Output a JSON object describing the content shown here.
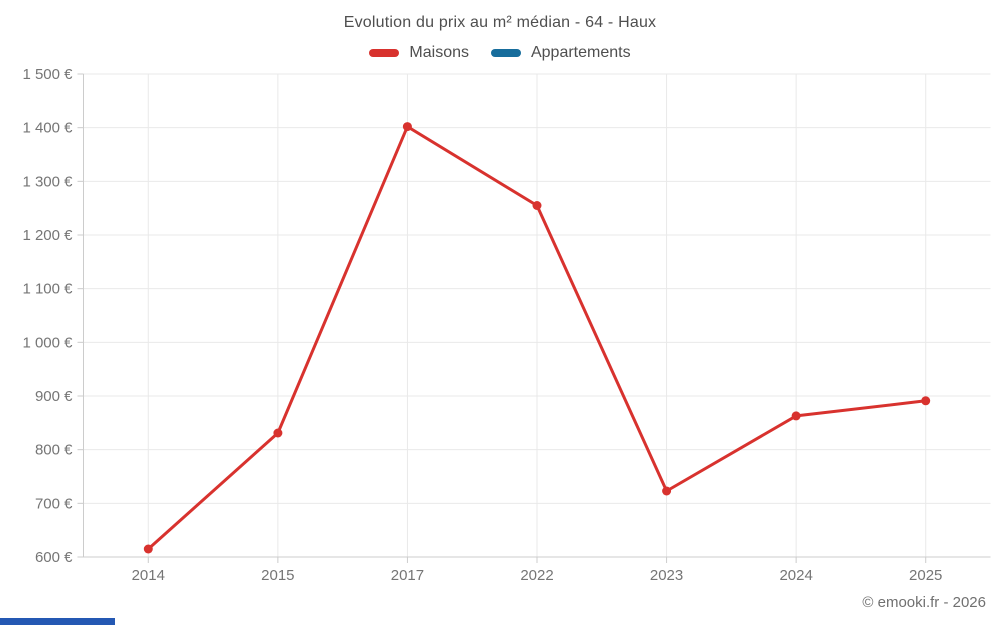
{
  "page": {
    "attribution": "© emooki.fr - 2026"
  },
  "colors": {
    "maisons_red": "#d8322e",
    "appartements_blue": "#176d9c",
    "gridline": "#e9e9e9",
    "axis_line": "#cccccc",
    "tick_label": "#757575",
    "title_text": "#4f4f4f",
    "bottom_bar_blue": "#2458b3"
  },
  "chart_data": {
    "type": "line",
    "title": "Evolution du prix au m² médian - 64 - Haux",
    "categories": [
      "2014",
      "2015",
      "2017",
      "2022",
      "2023",
      "2024",
      "2025"
    ],
    "series": [
      {
        "name": "Maisons",
        "color": "#d8322e",
        "values": [
          615,
          831,
          1402,
          1255,
          723,
          863,
          891
        ]
      },
      {
        "name": "Appartements",
        "color": "#176d9c",
        "values": []
      }
    ],
    "ylim": [
      600,
      1500
    ],
    "yticks": [
      {
        "value": 600,
        "label": "600 €"
      },
      {
        "value": 700,
        "label": "700 €"
      },
      {
        "value": 800,
        "label": "800 €"
      },
      {
        "value": 900,
        "label": "900 €"
      },
      {
        "value": 1000,
        "label": "1 000 €"
      },
      {
        "value": 1100,
        "label": "1 100 €"
      },
      {
        "value": 1200,
        "label": "1 200 €"
      },
      {
        "value": 1300,
        "label": "1 300 €"
      },
      {
        "value": 1400,
        "label": "1 400 €"
      },
      {
        "value": 1500,
        "label": "1 500 €"
      }
    ],
    "grid": true,
    "legend_position": "top",
    "currency_suffix": "€"
  }
}
